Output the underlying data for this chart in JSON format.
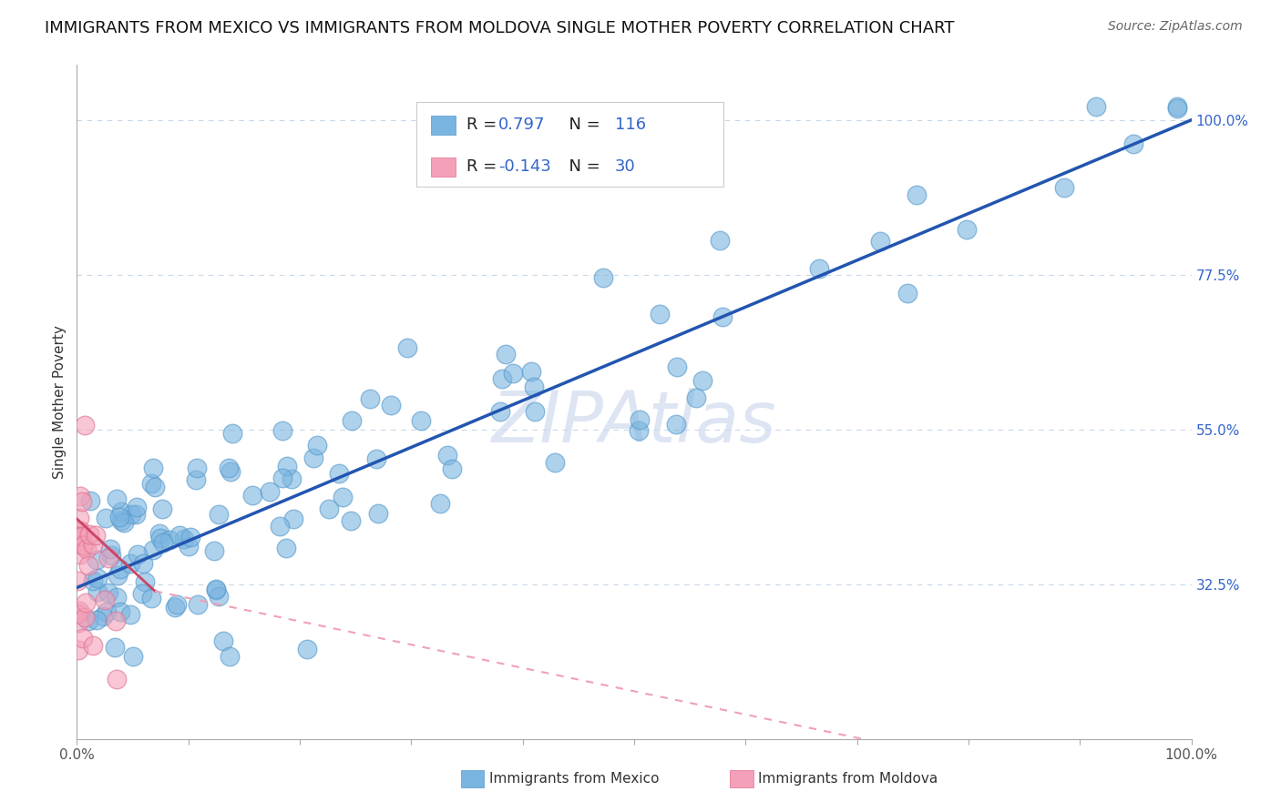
{
  "title": "IMMIGRANTS FROM MEXICO VS IMMIGRANTS FROM MOLDOVA SINGLE MOTHER POVERTY CORRELATION CHART",
  "source": "Source: ZipAtlas.com",
  "ylabel": "Single Mother Poverty",
  "x_tick_labels": [
    "0.0%",
    "100.0%"
  ],
  "y_tick_values": [
    0.325,
    0.55,
    0.775,
    1.0
  ],
  "y_tick_labels": [
    "32.5%",
    "55.0%",
    "77.5%",
    "100.0%"
  ],
  "x_range": [
    0.0,
    1.0
  ],
  "y_range": [
    0.1,
    1.08
  ],
  "R_mexico": 0.797,
  "N_mexico": 116,
  "R_moldova": -0.143,
  "N_moldova": 30,
  "mexico_color": "#7ab4e0",
  "mexico_edge_color": "#5599cc",
  "moldova_color": "#f4a0b8",
  "moldova_edge_color": "#e07090",
  "mexico_line_color": "#2255b0",
  "moldova_line_solid_color": "#cc4466",
  "moldova_line_dash_color": "#f0a0b8",
  "watermark": "ZIPAtlas",
  "background_color": "#ffffff",
  "grid_color": "#c8d8e8",
  "title_fontsize": 13,
  "axis_label_fontsize": 11,
  "tick_fontsize": 11,
  "legend_fontsize": 13,
  "source_fontsize": 10
}
